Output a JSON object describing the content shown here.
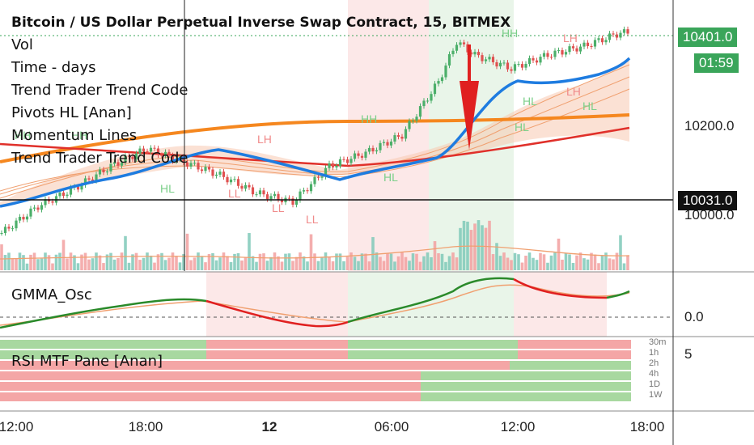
{
  "chart_data": {
    "type": "line",
    "title": "Bitcoin / US Dollar Perpetual Inverse Swap Contract, 15, BITMEX",
    "indicators": [
      "Vol",
      "Time - days",
      "Trend Trader Trend Code",
      "Pivots HL [Anan]",
      "Momentum Lines",
      "Trend Trader Trend Code"
    ],
    "price_axis": {
      "ticks": [
        10200.0,
        10000.0
      ],
      "tick_labels": [
        "10200.0",
        "10000.0"
      ]
    },
    "current_price": "10401.0",
    "countdown": "01:59",
    "crosshair_price": "10031.0",
    "x_ticks": [
      "12:00",
      "18:00",
      "12",
      "06:00",
      "12:00",
      "18:00"
    ],
    "pivot_labels": [
      "HH",
      "HH",
      "HL",
      "LH",
      "LL",
      "LL",
      "LL",
      "HH",
      "HL",
      "HH",
      "HL",
      "LH",
      "HL",
      "LH",
      "HL"
    ],
    "price_series": [
      {
        "x": 0,
        "y": 9960
      },
      {
        "x": 10,
        "y": 10020
      },
      {
        "x": 20,
        "y": 10060
      },
      {
        "x": 30,
        "y": 10110
      },
      {
        "x": 40,
        "y": 10150
      },
      {
        "x": 50,
        "y": 10120
      },
      {
        "x": 60,
        "y": 10090
      },
      {
        "x": 70,
        "y": 10050
      },
      {
        "x": 80,
        "y": 10030
      },
      {
        "x": 90,
        "y": 10110
      },
      {
        "x": 100,
        "y": 10140
      },
      {
        "x": 110,
        "y": 10180
      },
      {
        "x": 120,
        "y": 10300
      },
      {
        "x": 125,
        "y": 10390
      },
      {
        "x": 130,
        "y": 10360
      },
      {
        "x": 140,
        "y": 10330
      },
      {
        "x": 150,
        "y": 10360
      },
      {
        "x": 160,
        "y": 10380
      },
      {
        "x": 170,
        "y": 10410
      }
    ],
    "gmma_osc": {
      "title": "GMMA_Osc",
      "zero_label": "0.0"
    },
    "rsi_pane": {
      "title": "RSI MTF Pane [Anan]",
      "level_label": "5",
      "timeframes": [
        "30m",
        "1h",
        "2h",
        "4h",
        "1D",
        "1W"
      ]
    }
  }
}
